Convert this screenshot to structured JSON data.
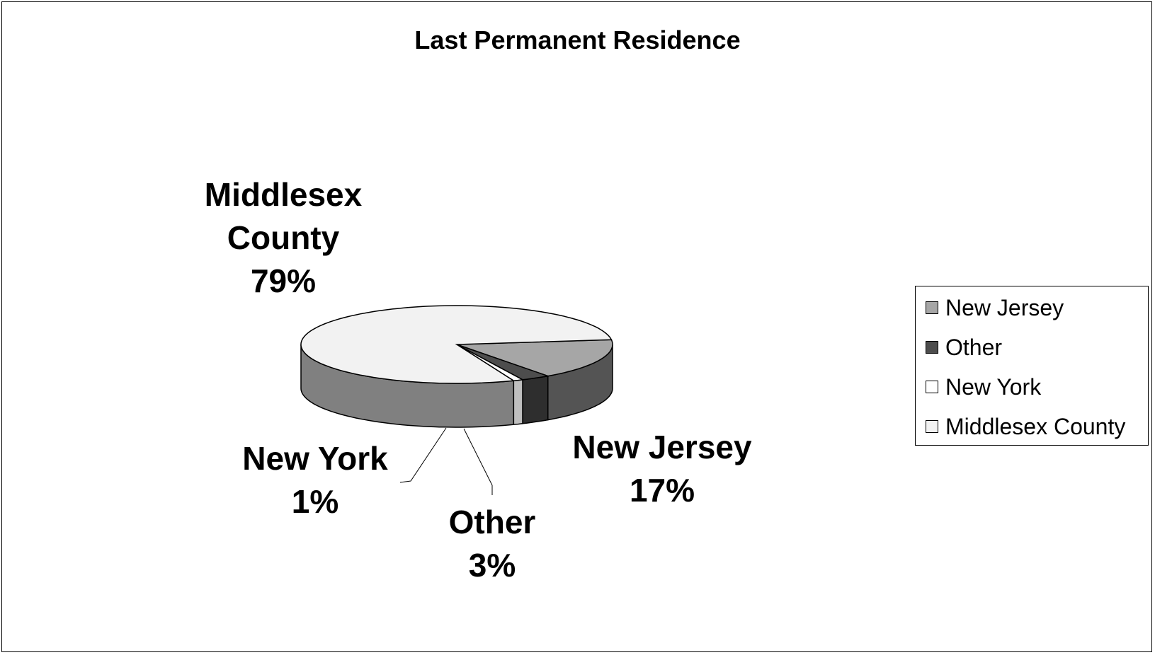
{
  "chart_data": {
    "type": "pie",
    "title": "Last Permanent Residence",
    "is_3d": true,
    "slices": [
      {
        "name": "New Jersey",
        "value": 17,
        "label": "New Jersey\n17%",
        "top_color": "#a6a6a6",
        "side_color": "#545454"
      },
      {
        "name": "Other",
        "value": 3,
        "label": "Other\n3%",
        "top_color": "#4d4d4d",
        "side_color": "#2e2e2e"
      },
      {
        "name": "New York",
        "value": 1,
        "label": "New York\n1%",
        "top_color": "#ffffff",
        "side_color": "#bfbfbf"
      },
      {
        "name": "Middlesex County",
        "value": 79,
        "label": "Middlesex\nCounty\n79%",
        "top_color": "#f2f2f2",
        "side_color": "#808080"
      }
    ],
    "legend_position": "right",
    "legend": [
      "New Jersey",
      "Other",
      "New York",
      "Middlesex County"
    ]
  }
}
